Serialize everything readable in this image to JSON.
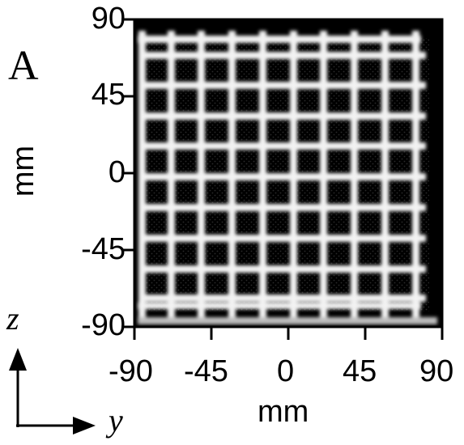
{
  "panel_label": "A",
  "image_description_colors": {
    "background": "#000000",
    "grid": "#f2f2f2",
    "frame": "#000000"
  },
  "grid": {
    "rows": 9,
    "cols": 10
  },
  "x_axis": {
    "label": "mm",
    "ticks": [
      "-90",
      "-45",
      "0",
      "45",
      "90"
    ]
  },
  "y_axis": {
    "label": "mm",
    "ticks": [
      "90",
      "45",
      "0",
      "-45",
      "-90"
    ]
  },
  "orientation": {
    "vertical_axis": "z",
    "horizontal_axis": "y"
  }
}
